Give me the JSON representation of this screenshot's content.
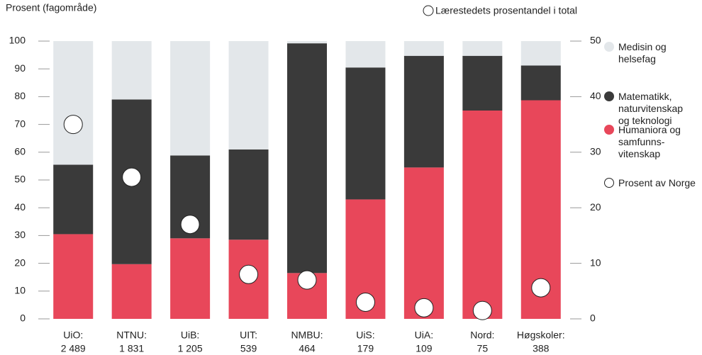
{
  "chart_data": {
    "type": "bar",
    "stacked": true,
    "y_label": "Prosent (fagområde)",
    "y2_label": "Lærestedets prosentandel i total",
    "categories": [
      [
        "UiO:",
        "2 489"
      ],
      [
        "NTNU:",
        "1 831"
      ],
      [
        "UiB:",
        "1 205"
      ],
      [
        "UIT:",
        "539"
      ],
      [
        "NMBU:",
        "464"
      ],
      [
        "UiS:",
        "179"
      ],
      [
        "UiA:",
        "109"
      ],
      [
        "Nord:",
        "75"
      ],
      [
        "Høgskoler:",
        "388"
      ]
    ],
    "series": [
      {
        "name": "Humaniora og samfunns-vitenskap",
        "color": "#e8475a",
        "values": [
          30.5,
          19.7,
          29,
          28.5,
          16.5,
          43,
          54.5,
          75,
          78.7
        ]
      },
      {
        "name": "Matematikk, naturvitenskap og teknologi",
        "color": "#3a3a3a",
        "values": [
          25,
          59.3,
          29.8,
          32.5,
          82.7,
          47.5,
          40.2,
          19.7,
          12.5
        ]
      },
      {
        "name": "Medisin og helsefag",
        "color": "#e3e7ea",
        "values": [
          44.5,
          21,
          41.2,
          39,
          0.8,
          9.5,
          5.3,
          5.3,
          8.8
        ]
      },
      {
        "name": "Prosent av Norge",
        "color": "#ffffff",
        "axis": "y2",
        "values": [
          35,
          25.5,
          17,
          8,
          7,
          3,
          2,
          1.5,
          5.6
        ]
      }
    ],
    "ylim": [
      0,
      100
    ],
    "yticks": [
      0,
      10,
      20,
      30,
      40,
      50,
      60,
      70,
      80,
      90,
      100
    ],
    "y2lim": [
      0,
      50
    ],
    "y2ticks": [
      0,
      10,
      20,
      30,
      40,
      50
    ]
  }
}
